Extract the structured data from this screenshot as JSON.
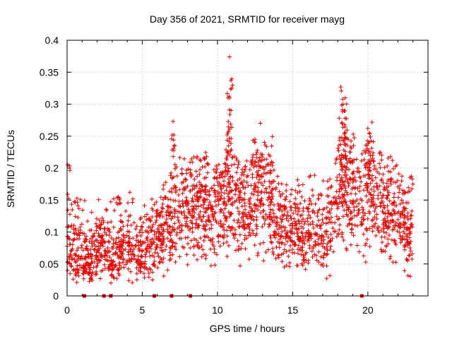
{
  "chart_data": {
    "type": "scatter",
    "title": "Day 356 of 2021, SRMTID for receiver mayg",
    "xlabel": "GPS time / hours",
    "ylabel": "SRMTID / TECUs",
    "xlim": [
      0,
      24
    ],
    "ylim": [
      0,
      0.4
    ],
    "x_ticks": [
      0,
      5,
      10,
      15,
      20
    ],
    "x_tick_labels": [
      "0",
      "5",
      "10",
      "15",
      "20"
    ],
    "y_ticks": [
      0,
      0.05,
      0.1,
      0.15,
      0.2,
      0.25,
      0.3,
      0.35,
      0.4
    ],
    "y_tick_labels": [
      "0",
      "0.05",
      "0.1",
      "0.15",
      "0.2",
      "0.25",
      "0.3",
      "0.35",
      "0.4"
    ],
    "grid": true,
    "marker": "plus",
    "marker_color": "#e00000",
    "series": [
      {
        "name": "SRMTID",
        "x_range": [
          0,
          23
        ],
        "trend": [
          {
            "x": 0.0,
            "y": 0.08
          },
          {
            "x": 0.5,
            "y": 0.07
          },
          {
            "x": 1.0,
            "y": 0.065
          },
          {
            "x": 1.5,
            "y": 0.05
          },
          {
            "x": 2.0,
            "y": 0.075
          },
          {
            "x": 2.5,
            "y": 0.08
          },
          {
            "x": 3.0,
            "y": 0.06
          },
          {
            "x": 3.5,
            "y": 0.07
          },
          {
            "x": 4.0,
            "y": 0.08
          },
          {
            "x": 4.5,
            "y": 0.075
          },
          {
            "x": 5.0,
            "y": 0.065
          },
          {
            "x": 5.5,
            "y": 0.08
          },
          {
            "x": 6.0,
            "y": 0.09
          },
          {
            "x": 6.5,
            "y": 0.1
          },
          {
            "x": 7.0,
            "y": 0.11
          },
          {
            "x": 7.5,
            "y": 0.13
          },
          {
            "x": 8.0,
            "y": 0.14
          },
          {
            "x": 8.5,
            "y": 0.13
          },
          {
            "x": 9.0,
            "y": 0.14
          },
          {
            "x": 9.5,
            "y": 0.12
          },
          {
            "x": 10.0,
            "y": 0.13
          },
          {
            "x": 10.5,
            "y": 0.15
          },
          {
            "x": 11.0,
            "y": 0.16
          },
          {
            "x": 11.5,
            "y": 0.14
          },
          {
            "x": 12.0,
            "y": 0.13
          },
          {
            "x": 12.5,
            "y": 0.15
          },
          {
            "x": 13.0,
            "y": 0.16
          },
          {
            "x": 13.5,
            "y": 0.15
          },
          {
            "x": 14.0,
            "y": 0.13
          },
          {
            "x": 14.5,
            "y": 0.11
          },
          {
            "x": 15.0,
            "y": 0.1
          },
          {
            "x": 15.5,
            "y": 0.09
          },
          {
            "x": 16.0,
            "y": 0.1
          },
          {
            "x": 16.5,
            "y": 0.11
          },
          {
            "x": 17.0,
            "y": 0.09
          },
          {
            "x": 17.5,
            "y": 0.1
          },
          {
            "x": 18.0,
            "y": 0.15
          },
          {
            "x": 18.5,
            "y": 0.18
          },
          {
            "x": 19.0,
            "y": 0.16
          },
          {
            "x": 19.5,
            "y": 0.13
          },
          {
            "x": 20.0,
            "y": 0.17
          },
          {
            "x": 20.5,
            "y": 0.16
          },
          {
            "x": 21.0,
            "y": 0.14
          },
          {
            "x": 21.5,
            "y": 0.13
          },
          {
            "x": 22.0,
            "y": 0.12
          },
          {
            "x": 22.5,
            "y": 0.11
          },
          {
            "x": 23.0,
            "y": 0.1
          }
        ],
        "peaks": [
          {
            "x": 0.05,
            "y": 0.205
          },
          {
            "x": 3.4,
            "y": 0.155
          },
          {
            "x": 7.05,
            "y": 0.273
          },
          {
            "x": 7.1,
            "y": 0.252
          },
          {
            "x": 10.8,
            "y": 0.374
          },
          {
            "x": 10.9,
            "y": 0.337
          },
          {
            "x": 10.7,
            "y": 0.31
          },
          {
            "x": 12.5,
            "y": 0.245
          },
          {
            "x": 18.2,
            "y": 0.327
          },
          {
            "x": 18.5,
            "y": 0.31
          },
          {
            "x": 18.35,
            "y": 0.3
          },
          {
            "x": 20.0,
            "y": 0.262
          },
          {
            "x": 20.1,
            "y": 0.255
          }
        ],
        "zero_points": [
          1.15,
          2.45,
          2.9,
          5.8,
          6.95,
          8.2,
          19.6
        ]
      }
    ]
  }
}
